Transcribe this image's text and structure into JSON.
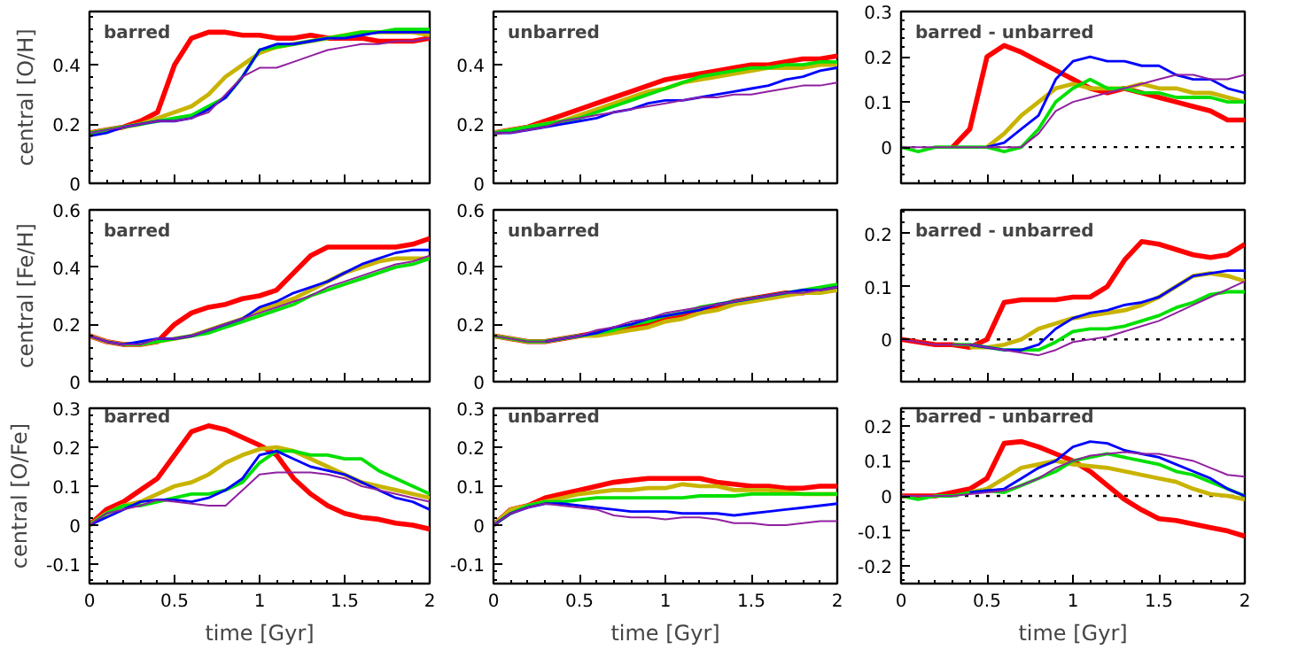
{
  "chart_data": [
    {
      "type": "line",
      "ylabel": "central [O/H]",
      "annotations": [
        "barred"
      ],
      "xlim": [
        0,
        2
      ],
      "xticks": [
        0,
        0.5,
        1,
        1.5,
        2
      ],
      "ylim": [
        0,
        0.58
      ],
      "yticks": [
        0,
        0.2,
        0.4
      ],
      "tick_labels": "y",
      "grid": false,
      "x": [
        0,
        0.1,
        0.2,
        0.3,
        0.4,
        0.5,
        0.6,
        0.7,
        0.8,
        0.9,
        1.0,
        1.1,
        1.2,
        1.3,
        1.4,
        1.5,
        1.6,
        1.7,
        1.8,
        1.9,
        2.0
      ],
      "series": [
        {
          "color": "#ff0000",
          "values": [
            0.17,
            0.18,
            0.19,
            0.21,
            0.24,
            0.4,
            0.49,
            0.51,
            0.51,
            0.5,
            0.5,
            0.49,
            0.49,
            0.5,
            0.49,
            0.49,
            0.49,
            0.48,
            0.48,
            0.48,
            0.49
          ]
        },
        {
          "color": "#c8b400",
          "values": [
            0.17,
            0.18,
            0.19,
            0.2,
            0.22,
            0.24,
            0.26,
            0.3,
            0.36,
            0.4,
            0.44,
            0.46,
            0.47,
            0.48,
            0.49,
            0.5,
            0.51,
            0.51,
            0.51,
            0.51,
            0.5
          ]
        },
        {
          "color": "#00e000",
          "values": [
            0.17,
            0.18,
            0.19,
            0.2,
            0.21,
            0.22,
            0.23,
            0.26,
            0.29,
            0.36,
            0.45,
            0.46,
            0.47,
            0.48,
            0.49,
            0.5,
            0.51,
            0.51,
            0.52,
            0.52,
            0.52
          ]
        },
        {
          "color": "#0000ff",
          "values": [
            0.16,
            0.17,
            0.19,
            0.2,
            0.21,
            0.21,
            0.22,
            0.25,
            0.29,
            0.36,
            0.45,
            0.47,
            0.47,
            0.48,
            0.49,
            0.49,
            0.5,
            0.51,
            0.51,
            0.51,
            0.51
          ]
        },
        {
          "color": "#9020a0",
          "values": [
            0.17,
            0.18,
            0.19,
            0.2,
            0.21,
            0.21,
            0.22,
            0.24,
            0.3,
            0.36,
            0.39,
            0.39,
            0.41,
            0.43,
            0.45,
            0.46,
            0.47,
            0.47,
            0.48,
            0.48,
            0.49
          ]
        }
      ]
    },
    {
      "type": "line",
      "annotations": [
        "unbarred"
      ],
      "xlim": [
        0,
        2
      ],
      "xticks": [
        0,
        0.5,
        1,
        1.5,
        2
      ],
      "ylim": [
        0,
        0.58
      ],
      "yticks": [
        0,
        0.2,
        0.4
      ],
      "tick_labels": "y",
      "grid": false,
      "x": [
        0,
        0.1,
        0.2,
        0.3,
        0.4,
        0.5,
        0.6,
        0.7,
        0.8,
        0.9,
        1.0,
        1.1,
        1.2,
        1.3,
        1.4,
        1.5,
        1.6,
        1.7,
        1.8,
        1.9,
        2.0
      ],
      "series": [
        {
          "color": "#ff0000",
          "values": [
            0.17,
            0.18,
            0.19,
            0.21,
            0.23,
            0.25,
            0.27,
            0.29,
            0.31,
            0.33,
            0.35,
            0.36,
            0.37,
            0.38,
            0.39,
            0.4,
            0.4,
            0.41,
            0.42,
            0.42,
            0.43
          ]
        },
        {
          "color": "#c8b400",
          "values": [
            0.17,
            0.18,
            0.19,
            0.2,
            0.21,
            0.23,
            0.25,
            0.27,
            0.29,
            0.31,
            0.32,
            0.34,
            0.35,
            0.36,
            0.37,
            0.38,
            0.39,
            0.39,
            0.39,
            0.4,
            0.4
          ]
        },
        {
          "color": "#00e000",
          "values": [
            0.17,
            0.18,
            0.19,
            0.2,
            0.21,
            0.22,
            0.24,
            0.26,
            0.28,
            0.3,
            0.32,
            0.34,
            0.36,
            0.37,
            0.38,
            0.39,
            0.39,
            0.4,
            0.4,
            0.41,
            0.41
          ]
        },
        {
          "color": "#0000ff",
          "values": [
            0.17,
            0.17,
            0.18,
            0.19,
            0.2,
            0.21,
            0.22,
            0.24,
            0.25,
            0.27,
            0.28,
            0.28,
            0.29,
            0.3,
            0.31,
            0.32,
            0.33,
            0.35,
            0.36,
            0.38,
            0.39
          ]
        },
        {
          "color": "#9020a0",
          "values": [
            0.17,
            0.17,
            0.18,
            0.19,
            0.21,
            0.22,
            0.23,
            0.24,
            0.25,
            0.26,
            0.27,
            0.28,
            0.29,
            0.29,
            0.3,
            0.3,
            0.31,
            0.32,
            0.33,
            0.33,
            0.34
          ]
        }
      ]
    },
    {
      "type": "line",
      "annotations": [
        "barred - unbarred"
      ],
      "xlim": [
        0,
        2
      ],
      "xticks": [
        0,
        0.5,
        1,
        1.5,
        2
      ],
      "ylim": [
        -0.08,
        0.3
      ],
      "yticks": [
        0,
        0.1,
        0.2,
        0.3
      ],
      "tick_labels": "y",
      "grid": false,
      "ref_lines": [
        {
          "axis": "y",
          "value": 0,
          "line_style": "dotted",
          "color": "#000000"
        }
      ],
      "x": [
        0,
        0.1,
        0.2,
        0.3,
        0.4,
        0.5,
        0.6,
        0.7,
        0.8,
        0.9,
        1.0,
        1.1,
        1.2,
        1.3,
        1.4,
        1.5,
        1.6,
        1.7,
        1.8,
        1.9,
        2.0
      ],
      "series": [
        {
          "color": "#ff0000",
          "values": [
            null,
            null,
            null,
            0,
            0.04,
            0.2,
            0.225,
            0.21,
            0.19,
            0.17,
            0.15,
            0.13,
            0.12,
            0.13,
            0.12,
            0.11,
            0.1,
            0.09,
            0.08,
            0.06,
            0.06
          ]
        },
        {
          "color": "#c8b400",
          "values": [
            null,
            null,
            null,
            null,
            null,
            0,
            0.03,
            0.07,
            0.1,
            0.13,
            0.14,
            0.13,
            0.13,
            0.13,
            0.14,
            0.13,
            0.13,
            0.12,
            0.12,
            0.11,
            0.1
          ]
        },
        {
          "color": "#00e000",
          "values": [
            0,
            -0.01,
            0,
            0,
            0,
            0,
            -0.01,
            0,
            0.04,
            0.1,
            0.13,
            0.15,
            0.13,
            0.13,
            0.12,
            0.12,
            0.11,
            0.11,
            0.11,
            0.1,
            0.1
          ]
        },
        {
          "color": "#0000ff",
          "values": [
            null,
            null,
            null,
            null,
            null,
            0,
            0.01,
            0.04,
            0.07,
            0.15,
            0.19,
            0.2,
            0.19,
            0.19,
            0.18,
            0.18,
            0.16,
            0.15,
            0.15,
            0.13,
            0.12
          ]
        },
        {
          "color": "#9020a0",
          "values": [
            0,
            0,
            0,
            0,
            0,
            0,
            0,
            0,
            0.03,
            0.08,
            0.1,
            0.11,
            0.12,
            0.13,
            0.14,
            0.15,
            0.16,
            0.16,
            0.15,
            0.15,
            0.16
          ]
        }
      ]
    },
    {
      "type": "line",
      "ylabel": "central [Fe/H]",
      "annotations": [
        "barred"
      ],
      "xlim": [
        0,
        2
      ],
      "xticks": [
        0,
        0.5,
        1,
        1.5,
        2
      ],
      "ylim": [
        0,
        0.6
      ],
      "yticks": [
        0,
        0.2,
        0.4,
        0.6
      ],
      "tick_labels": "y",
      "grid": false,
      "x": [
        0,
        0.1,
        0.2,
        0.3,
        0.4,
        0.5,
        0.6,
        0.7,
        0.8,
        0.9,
        1.0,
        1.1,
        1.2,
        1.3,
        1.4,
        1.5,
        1.6,
        1.7,
        1.8,
        1.9,
        2.0
      ],
      "series": [
        {
          "color": "#ff0000",
          "values": [
            0.16,
            0.14,
            0.13,
            0.13,
            0.14,
            0.2,
            0.24,
            0.26,
            0.27,
            0.29,
            0.3,
            0.32,
            0.38,
            0.44,
            0.47,
            0.47,
            0.47,
            0.47,
            0.47,
            0.48,
            0.5
          ]
        },
        {
          "color": "#c8b400",
          "values": [
            0.16,
            0.14,
            0.13,
            0.13,
            0.14,
            0.15,
            0.16,
            0.18,
            0.2,
            0.22,
            0.25,
            0.27,
            0.29,
            0.32,
            0.35,
            0.38,
            0.4,
            0.42,
            0.43,
            0.43,
            0.43
          ]
        },
        {
          "color": "#00e000",
          "values": [
            null,
            null,
            0.13,
            0.13,
            0.14,
            0.15,
            0.16,
            0.17,
            0.19,
            0.21,
            0.23,
            0.25,
            0.27,
            0.3,
            0.32,
            0.34,
            0.36,
            0.38,
            0.4,
            0.41,
            0.43
          ]
        },
        {
          "color": "#0000ff",
          "values": [
            0.16,
            0.14,
            0.13,
            0.14,
            0.15,
            0.15,
            0.16,
            0.18,
            0.2,
            0.22,
            0.26,
            0.28,
            0.31,
            0.33,
            0.35,
            0.38,
            0.41,
            0.43,
            0.45,
            0.46,
            0.46
          ]
        },
        {
          "color": "#9020a0",
          "values": [
            0.16,
            0.14,
            0.13,
            0.13,
            0.15,
            0.15,
            0.16,
            0.18,
            0.2,
            0.22,
            0.24,
            0.26,
            0.28,
            0.3,
            0.33,
            0.35,
            0.37,
            0.39,
            0.41,
            0.42,
            0.44
          ]
        }
      ]
    },
    {
      "type": "line",
      "annotations": [
        "unbarred"
      ],
      "xlim": [
        0,
        2
      ],
      "xticks": [
        0,
        0.5,
        1,
        1.5,
        2
      ],
      "ylim": [
        0,
        0.6
      ],
      "yticks": [
        0,
        0.2,
        0.4,
        0.6
      ],
      "tick_labels": "y",
      "grid": false,
      "x": [
        0,
        0.1,
        0.2,
        0.3,
        0.4,
        0.5,
        0.6,
        0.7,
        0.8,
        0.9,
        1.0,
        1.1,
        1.2,
        1.3,
        1.4,
        1.5,
        1.6,
        1.7,
        1.8,
        1.9,
        2.0
      ],
      "series": [
        {
          "color": "#ff0000",
          "values": [
            0.16,
            0.15,
            0.14,
            0.14,
            0.15,
            0.16,
            0.17,
            0.18,
            0.19,
            0.2,
            0.22,
            0.23,
            0.25,
            0.26,
            0.28,
            0.29,
            0.3,
            0.31,
            0.31,
            0.32,
            0.33
          ]
        },
        {
          "color": "#c8b400",
          "values": [
            0.16,
            0.15,
            0.14,
            0.14,
            0.15,
            0.16,
            0.16,
            0.17,
            0.18,
            0.19,
            0.21,
            0.22,
            0.24,
            0.25,
            0.27,
            0.28,
            0.29,
            0.3,
            0.31,
            0.31,
            0.32
          ]
        },
        {
          "color": "#00e000",
          "values": [
            0.16,
            0.15,
            0.14,
            0.14,
            0.15,
            0.16,
            0.17,
            0.18,
            0.2,
            0.21,
            0.23,
            0.24,
            0.26,
            0.27,
            0.28,
            0.29,
            0.3,
            0.31,
            0.32,
            0.33,
            0.34
          ]
        },
        {
          "color": "#0000ff",
          "values": [
            null,
            null,
            null,
            0.14,
            0.15,
            0.16,
            0.17,
            0.19,
            0.2,
            0.22,
            0.23,
            0.24,
            0.25,
            0.27,
            0.28,
            0.29,
            0.3,
            0.31,
            0.32,
            0.32,
            0.33
          ]
        },
        {
          "color": "#9020a0",
          "values": [
            0.16,
            0.15,
            0.14,
            0.14,
            0.15,
            0.16,
            0.18,
            0.19,
            0.21,
            0.22,
            0.24,
            0.25,
            0.26,
            0.27,
            0.28,
            0.29,
            0.3,
            0.31,
            0.31,
            0.32,
            0.33
          ]
        }
      ]
    },
    {
      "type": "line",
      "annotations": [
        "barred - unbarred"
      ],
      "xlim": [
        0,
        2
      ],
      "xticks": [
        0,
        0.5,
        1,
        1.5,
        2
      ],
      "ylim": [
        -0.08,
        0.245
      ],
      "yticks": [
        0,
        0.1,
        0.2
      ],
      "tick_labels": "y",
      "grid": false,
      "ref_lines": [
        {
          "axis": "y",
          "value": 0,
          "line_style": "dotted",
          "color": "#000000"
        }
      ],
      "x": [
        0,
        0.1,
        0.2,
        0.3,
        0.4,
        0.5,
        0.6,
        0.7,
        0.8,
        0.9,
        1.0,
        1.1,
        1.2,
        1.3,
        1.4,
        1.5,
        1.6,
        1.7,
        1.8,
        1.9,
        2.0
      ],
      "series": [
        {
          "color": "#ff0000",
          "values": [
            0,
            -0.005,
            -0.01,
            -0.01,
            -0.015,
            0.0,
            0.07,
            0.075,
            0.075,
            0.075,
            0.08,
            0.08,
            0.1,
            0.15,
            0.185,
            0.18,
            0.17,
            0.16,
            0.155,
            0.16,
            0.18
          ]
        },
        {
          "color": "#c8b400",
          "values": [
            null,
            null,
            null,
            null,
            -0.015,
            -0.015,
            -0.01,
            0,
            0.02,
            0.03,
            0.04,
            0.045,
            0.05,
            0.055,
            0.065,
            0.08,
            0.1,
            0.12,
            0.125,
            0.12,
            0.11
          ]
        },
        {
          "color": "#00e000",
          "values": [
            null,
            null,
            null,
            -0.01,
            -0.01,
            -0.015,
            -0.02,
            -0.02,
            -0.02,
            -0.005,
            0.015,
            0.02,
            0.02,
            0.025,
            0.035,
            0.045,
            0.06,
            0.07,
            0.085,
            0.09,
            0.09
          ]
        },
        {
          "color": "#0000ff",
          "values": [
            null,
            null,
            null,
            null,
            -0.01,
            -0.015,
            -0.02,
            -0.02,
            -0.01,
            0.02,
            0.04,
            0.05,
            0.055,
            0.065,
            0.07,
            0.08,
            0.1,
            0.12,
            0.125,
            0.13,
            0.13
          ]
        },
        {
          "color": "#9020a0",
          "values": [
            0,
            -0.005,
            -0.01,
            -0.01,
            -0.01,
            -0.015,
            -0.02,
            -0.025,
            -0.03,
            -0.02,
            -0.005,
            0.0,
            0.005,
            0.015,
            0.025,
            0.035,
            0.05,
            0.065,
            0.08,
            0.095,
            0.11
          ]
        }
      ]
    },
    {
      "type": "line",
      "ylabel": "central [O/Fe]",
      "xlabel": "time [Gyr]",
      "annotations": [
        "barred"
      ],
      "xlim": [
        0,
        2
      ],
      "xticks": [
        0,
        0.5,
        1,
        1.5,
        2
      ],
      "ylim": [
        -0.15,
        0.3
      ],
      "yticks": [
        -0.1,
        0,
        0.1,
        0.2,
        0.3
      ],
      "grid": false,
      "x": [
        0,
        0.1,
        0.2,
        0.3,
        0.4,
        0.5,
        0.6,
        0.7,
        0.8,
        0.9,
        1.0,
        1.1,
        1.2,
        1.3,
        1.4,
        1.5,
        1.6,
        1.7,
        1.8,
        1.9,
        2.0
      ],
      "series": [
        {
          "color": "#ff0000",
          "values": [
            0,
            0.04,
            0.06,
            0.09,
            0.12,
            0.18,
            0.24,
            0.255,
            0.245,
            0.225,
            0.205,
            0.18,
            0.12,
            0.08,
            0.05,
            0.03,
            0.02,
            0.015,
            0.005,
            0.0,
            -0.01
          ]
        },
        {
          "color": "#c8b400",
          "values": [
            0,
            0.03,
            0.05,
            0.06,
            0.08,
            0.1,
            0.11,
            0.13,
            0.16,
            0.18,
            0.195,
            0.2,
            0.19,
            0.17,
            0.15,
            0.13,
            0.11,
            0.1,
            0.09,
            0.08,
            0.07
          ]
        },
        {
          "color": "#00e000",
          "values": [
            0,
            0.03,
            0.05,
            0.05,
            0.06,
            0.07,
            0.08,
            0.08,
            0.09,
            0.11,
            0.16,
            0.19,
            0.19,
            0.18,
            0.18,
            0.17,
            0.17,
            0.14,
            0.12,
            0.1,
            0.08
          ]
        },
        {
          "color": "#0000ff",
          "values": [
            0,
            0.02,
            0.04,
            0.06,
            0.065,
            0.065,
            0.06,
            0.07,
            0.09,
            0.12,
            0.18,
            0.19,
            0.17,
            0.15,
            0.14,
            0.13,
            0.11,
            0.09,
            0.07,
            0.06,
            0.04
          ]
        },
        {
          "color": "#9020a0",
          "values": [
            0,
            0.03,
            0.04,
            0.05,
            0.065,
            0.06,
            0.055,
            0.05,
            0.05,
            0.09,
            0.13,
            0.135,
            0.135,
            0.135,
            0.13,
            0.12,
            0.1,
            0.09,
            0.08,
            0.07,
            0.06
          ]
        }
      ]
    },
    {
      "type": "line",
      "xlabel": "time [Gyr]",
      "annotations": [
        "unbarred"
      ],
      "xlim": [
        0,
        2
      ],
      "xticks": [
        0,
        0.5,
        1,
        1.5,
        2
      ],
      "ylim": [
        -0.15,
        0.3
      ],
      "yticks": [
        -0.1,
        0,
        0.1,
        0.2,
        0.3
      ],
      "grid": false,
      "x": [
        0,
        0.1,
        0.2,
        0.3,
        0.4,
        0.5,
        0.6,
        0.7,
        0.8,
        0.9,
        1.0,
        1.1,
        1.2,
        1.3,
        1.4,
        1.5,
        1.6,
        1.7,
        1.8,
        1.9,
        2.0
      ],
      "series": [
        {
          "color": "#ff0000",
          "values": [
            0,
            0.04,
            0.05,
            0.07,
            0.08,
            0.09,
            0.1,
            0.11,
            0.115,
            0.12,
            0.12,
            0.12,
            0.12,
            0.11,
            0.105,
            0.1,
            0.1,
            0.095,
            0.095,
            0.1,
            0.1
          ]
        },
        {
          "color": "#c8b400",
          "values": [
            0,
            0.04,
            0.05,
            0.06,
            0.07,
            0.08,
            0.085,
            0.09,
            0.09,
            0.095,
            0.095,
            0.105,
            0.1,
            0.1,
            0.09,
            0.09,
            0.09,
            0.085,
            0.08,
            0.08,
            0.08
          ]
        },
        {
          "color": "#00e000",
          "values": [
            0,
            0.03,
            0.05,
            0.06,
            0.06,
            0.065,
            0.07,
            0.07,
            0.07,
            0.07,
            0.07,
            0.07,
            0.075,
            0.075,
            0.075,
            0.08,
            0.08,
            0.08,
            0.08,
            0.08,
            0.08
          ]
        },
        {
          "color": "#0000ff",
          "values": [
            0,
            0.03,
            0.045,
            0.055,
            0.055,
            0.05,
            0.045,
            0.04,
            0.035,
            0.035,
            0.035,
            0.03,
            0.03,
            0.03,
            0.025,
            0.03,
            0.035,
            0.04,
            0.045,
            0.05,
            0.055
          ]
        },
        {
          "color": "#9020a0",
          "values": [
            0,
            0.03,
            0.045,
            0.055,
            0.05,
            0.045,
            0.04,
            0.025,
            0.02,
            0.02,
            0.015,
            0.02,
            0.02,
            0.015,
            0.005,
            0.005,
            0.0,
            0.0,
            0.005,
            0.01,
            0.01
          ]
        }
      ]
    },
    {
      "type": "line",
      "xlabel": "time [Gyr]",
      "annotations": [
        "barred - unbarred"
      ],
      "xlim": [
        0,
        2
      ],
      "xticks": [
        0,
        0.5,
        1,
        1.5,
        2
      ],
      "ylim": [
        -0.25,
        0.25
      ],
      "yticks": [
        -0.2,
        -0.1,
        0,
        0.1,
        0.2
      ],
      "grid": false,
      "ref_lines": [
        {
          "axis": "y",
          "value": 0,
          "line_style": "dotted",
          "color": "#000000"
        }
      ],
      "x": [
        0,
        0.1,
        0.2,
        0.3,
        0.4,
        0.5,
        0.6,
        0.7,
        0.8,
        0.9,
        1.0,
        1.1,
        1.2,
        1.3,
        1.4,
        1.5,
        1.6,
        1.7,
        1.8,
        1.9,
        2.0
      ],
      "series": [
        {
          "color": "#ff0000",
          "values": [
            0,
            0,
            0,
            0.01,
            0.02,
            0.05,
            0.15,
            0.155,
            0.14,
            0.12,
            0.1,
            0.07,
            0.03,
            -0.01,
            -0.04,
            -0.065,
            -0.07,
            -0.08,
            -0.09,
            -0.1,
            -0.115
          ]
        },
        {
          "color": "#c8b400",
          "values": [
            null,
            null,
            null,
            null,
            0.01,
            0.02,
            0.05,
            0.08,
            0.09,
            0.1,
            0.09,
            0.085,
            0.08,
            0.07,
            0.06,
            0.05,
            0.04,
            0.02,
            0.005,
            0.0,
            -0.01
          ]
        },
        {
          "color": "#00e000",
          "values": [
            0,
            -0.01,
            0,
            0,
            0.01,
            0.015,
            0.01,
            0.03,
            0.05,
            0.07,
            0.1,
            0.11,
            0.12,
            0.11,
            0.1,
            0.09,
            0.07,
            0.06,
            0.04,
            0.02,
            0.0
          ]
        },
        {
          "color": "#0000ff",
          "values": [
            null,
            null,
            null,
            null,
            0.01,
            0.015,
            0.02,
            0.05,
            0.08,
            0.1,
            0.14,
            0.155,
            0.15,
            0.13,
            0.12,
            0.11,
            0.09,
            0.07,
            0.05,
            0.02,
            0.0
          ]
        },
        {
          "color": "#9020a0",
          "values": [
            0,
            0,
            0,
            0,
            0.005,
            0.01,
            0.015,
            0.03,
            0.05,
            0.08,
            0.1,
            0.115,
            0.12,
            0.125,
            0.12,
            0.12,
            0.11,
            0.1,
            0.08,
            0.06,
            0.055
          ]
        }
      ]
    }
  ]
}
